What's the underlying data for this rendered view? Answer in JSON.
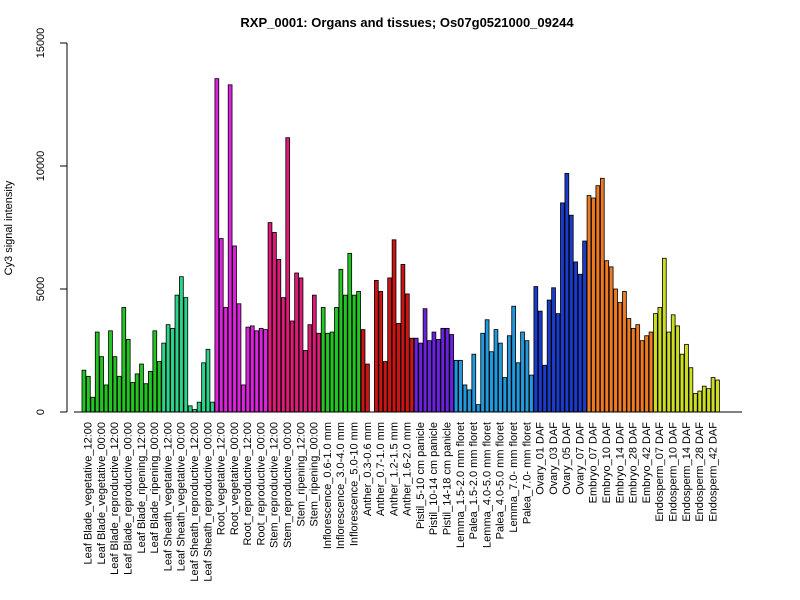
{
  "chart_data": {
    "type": "bar",
    "title": "RXP_0001: Organs and tissues; Os07g0521000_09244",
    "ylabel": "Cy3 signal intensity",
    "xlabel": "",
    "ylim": [
      0,
      15000
    ],
    "yticks": [
      0,
      5000,
      10000,
      15000
    ],
    "grid": false,
    "legend": "none",
    "groups": [
      {
        "label": "Leaf Blade_vegetative_12:00",
        "color": "#22c522",
        "values": [
          1700,
          1450,
          600
        ]
      },
      {
        "label": "Leaf Blade_vegetative_00:00",
        "color": "#22c522",
        "values": [
          3250,
          2250,
          1100
        ]
      },
      {
        "label": "Leaf Blade_reproductive_12:00",
        "color": "#22c522",
        "values": [
          3300,
          2250,
          1450
        ]
      },
      {
        "label": "Leaf Blade_reproductive_00:00",
        "color": "#22c522",
        "values": [
          4250,
          2950,
          1200
        ]
      },
      {
        "label": "Leaf Blade_ripening_12:00",
        "color": "#22c522",
        "values": [
          1550,
          1950,
          1150
        ]
      },
      {
        "label": "Leaf Blade_ripening_00:00",
        "color": "#22c522",
        "values": [
          1650,
          3300,
          2050
        ]
      },
      {
        "label": "Leaf Sheath_vegetative_12:00",
        "color": "#2ed38a",
        "values": [
          2800,
          3550,
          3400
        ]
      },
      {
        "label": "Leaf Sheath_vegetative_00:00",
        "color": "#2ed38a",
        "values": [
          4750,
          5500,
          4650
        ]
      },
      {
        "label": "Leaf Sheath_reproductive_12:00",
        "color": "#2ed38a",
        "values": [
          250,
          100,
          400
        ]
      },
      {
        "label": "Leaf Sheath_reproductive_00:00",
        "color": "#2ed38a",
        "values": [
          2000,
          2550,
          400
        ]
      },
      {
        "label": "Root_vegetative_12:00",
        "color": "#dd22dd",
        "values": [
          13550,
          7050,
          4250
        ]
      },
      {
        "label": "Root_vegetative_00:00",
        "color": "#dd22dd",
        "values": [
          13300,
          6750,
          4400
        ]
      },
      {
        "label": "Root_reproductive_12:00",
        "color": "#dd22dd",
        "values": [
          1100,
          3450,
          3500
        ]
      },
      {
        "label": "Root_reproductive_00:00",
        "color": "#dd22dd",
        "values": [
          3300,
          3400,
          3350
        ]
      },
      {
        "label": "Stem_reproductive_12:00",
        "color": "#dd1a77",
        "values": [
          7700,
          7300,
          6200
        ]
      },
      {
        "label": "Stem_reproductive_00:00",
        "color": "#dd1a77",
        "values": [
          4650,
          11150,
          3700
        ]
      },
      {
        "label": "Stem_ripening_12:00",
        "color": "#dd1a77",
        "values": [
          5650,
          5450,
          2500
        ]
      },
      {
        "label": "Stem_ripening_00:00",
        "color": "#dd1a77",
        "values": [
          3550,
          4750,
          3200
        ]
      },
      {
        "label": "Inflorescence_0.6-1.0 mm",
        "color": "#22c522",
        "values": [
          4250,
          3200,
          3250
        ]
      },
      {
        "label": "Inflorescence_3.0-4.0 mm",
        "color": "#22c522",
        "values": [
          4250,
          5800,
          4750
        ]
      },
      {
        "label": "Inflorescence_5.0-10 mm",
        "color": "#22c522",
        "values": [
          6450,
          4750,
          4900
        ]
      },
      {
        "label": "Anther_0.3-0.6 mm",
        "color": "#cc1414",
        "values": [
          3350,
          1950
        ]
      },
      {
        "label": "Anther_0.7-1.0 mm",
        "color": "#cc1414",
        "values": [
          5350,
          4900,
          2050
        ]
      },
      {
        "label": "Anther_1.2-1.5 mm",
        "color": "#cc1414",
        "values": [
          5450,
          7000,
          3600
        ]
      },
      {
        "label": "Anther_1.6-2.0 mm",
        "color": "#cc1414",
        "values": [
          6000,
          4800,
          3000
        ]
      },
      {
        "label": "Pistil_5-10 cm panicle",
        "color": "#6a22dd",
        "values": [
          3000,
          2800,
          4200
        ]
      },
      {
        "label": "Pistil_10-14 cm panicle",
        "color": "#6a22dd",
        "values": [
          2900,
          3250,
          2950
        ]
      },
      {
        "label": "Pistil_14-18 cm panicle",
        "color": "#6a22dd",
        "values": [
          3400,
          3400,
          3150
        ]
      },
      {
        "label": "Lemma_1.5-2.0 mm floret",
        "color": "#2299dd",
        "values": [
          2100,
          2100,
          1100
        ]
      },
      {
        "label": "Palea_1.5-2.0 mm floret",
        "color": "#2299dd",
        "values": [
          900,
          2350,
          300
        ]
      },
      {
        "label": "Lemma_4.0-5.0 mm floret",
        "color": "#2299dd",
        "values": [
          3200,
          3750,
          2450
        ]
      },
      {
        "label": "Palea_4.0-5.0 mm floret",
        "color": "#2299dd",
        "values": [
          3350,
          2800,
          1400
        ]
      },
      {
        "label": "Lemma_7.0- mm floret",
        "color": "#2299dd",
        "values": [
          3100,
          4300,
          2000
        ]
      },
      {
        "label": "Palea_7.0- mm floret",
        "color": "#2299dd",
        "values": [
          3250,
          2900,
          1500
        ]
      },
      {
        "label": "Ovary_01 DAF",
        "color": "#1a3ccc",
        "values": [
          5100,
          4100,
          1900
        ]
      },
      {
        "label": "Ovary_03 DAF",
        "color": "#1a3ccc",
        "values": [
          4550,
          5050,
          4000
        ]
      },
      {
        "label": "Ovary_05 DAF",
        "color": "#1a3ccc",
        "values": [
          8500,
          9700,
          8000
        ]
      },
      {
        "label": "Ovary_07 DAF",
        "color": "#1a3ccc",
        "values": [
          6100,
          5600,
          6950
        ]
      },
      {
        "label": "Embryo_07 DAF",
        "color": "#ee7a22",
        "values": [
          8800,
          8700,
          9200
        ]
      },
      {
        "label": "Embryo_10 DAF",
        "color": "#ee7a22",
        "values": [
          9500,
          6150,
          5900
        ]
      },
      {
        "label": "Embryo_14 DAF",
        "color": "#ee7a22",
        "values": [
          5000,
          4450,
          4900
        ]
      },
      {
        "label": "Embryo_28 DAF",
        "color": "#ee7a22",
        "values": [
          3800,
          3400,
          3550
        ]
      },
      {
        "label": "Embryo_42 DAF",
        "color": "#ee7a22",
        "values": [
          2900,
          3100,
          3250
        ]
      },
      {
        "label": "Endosperm_07 DAF",
        "color": "#ccdd22",
        "values": [
          4000,
          4250,
          6250
        ]
      },
      {
        "label": "Endosperm_10 DAF",
        "color": "#ccdd22",
        "values": [
          3250,
          3950,
          3500
        ]
      },
      {
        "label": "Endosperm_14 DAF",
        "color": "#ccdd22",
        "values": [
          2350,
          2750,
          1800
        ]
      },
      {
        "label": "Endosperm_28 DAF",
        "color": "#ccdd22",
        "values": [
          750,
          850,
          1050
        ]
      },
      {
        "label": "Endosperm_42 DAF",
        "color": "#ccdd22",
        "values": [
          950,
          1400,
          1300
        ]
      }
    ]
  }
}
